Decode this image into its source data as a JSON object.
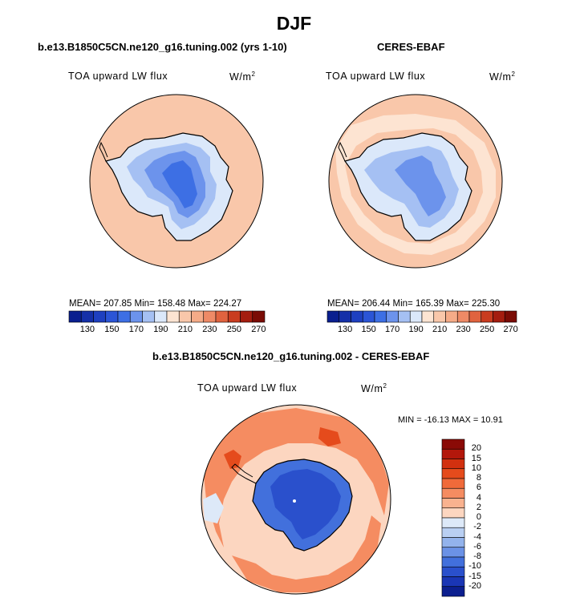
{
  "figure": {
    "title": "DJF"
  },
  "panels": [
    {
      "title": "b.e13.B1850C5CN.ne120_g16.tuning.002 (yrs 1-10)",
      "variable": "TOA upward LW flux",
      "units": "W/m",
      "units_exp": "2",
      "stats": "MEAN= 207.85   Min= 158.48   Max= 224.27"
    },
    {
      "title": "CERES-EBAF",
      "variable": "TOA upward LW flux",
      "units": "W/m",
      "units_exp": "2",
      "stats": "MEAN= 206.44   Min= 165.39   Max= 225.30"
    },
    {
      "title": "b.e13.B1850C5CN.ne120_g16.tuning.002 - CERES-EBAF",
      "variable": "TOA upward LW flux",
      "units": "W/m",
      "units_exp": "2",
      "minmax": "MIN = -16.13  MAX =   10.91"
    }
  ],
  "colorbar_abs": {
    "labels": [
      "130",
      "150",
      "170",
      "190",
      "210",
      "230",
      "250",
      "270"
    ],
    "colors": [
      "#0a1f8f",
      "#1530a8",
      "#1e40c0",
      "#2b55d6",
      "#3d6fe4",
      "#6c93ec",
      "#a5c0f3",
      "#dbe8fa",
      "#fde4d2",
      "#f9c7aa",
      "#f5ab88",
      "#ee8a66",
      "#e0633f",
      "#c93c1f",
      "#a41d0f",
      "#7a0c05"
    ]
  },
  "colorbar_diff": {
    "labels": [
      "20",
      "15",
      "10",
      "8",
      "6",
      "4",
      "2",
      "0",
      "-2",
      "-4",
      "-6",
      "-8",
      "-10",
      "-15",
      "-20"
    ],
    "colors": [
      "#8a0a06",
      "#b3170b",
      "#d2300f",
      "#e54b1c",
      "#f06a3a",
      "#f58c61",
      "#f9b28f",
      "#fcd6c0",
      "#dde9f8",
      "#b9cff2",
      "#93b3ec",
      "#6b92e6",
      "#4270dc",
      "#2a50cc",
      "#1a36b5",
      "#0c1f8f"
    ]
  },
  "map_colors": {
    "ocean_abs": "#f9c7aa",
    "ocean_abs_light": "#fde4d2",
    "ice_light": "#dbe8fa",
    "ice_mid": "#a5c0f3",
    "ice_blue": "#6c93ec",
    "ice_deep": "#3d6fe4",
    "diff_ocean_pos": "#f58c61",
    "diff_ocean_light": "#fcd6c0",
    "diff_ocean_red": "#e54b1c",
    "diff_neg_light": "#dde9f8",
    "diff_ice": "#2a50cc",
    "diff_ice_mid": "#4270dc",
    "coast": "#000000"
  }
}
